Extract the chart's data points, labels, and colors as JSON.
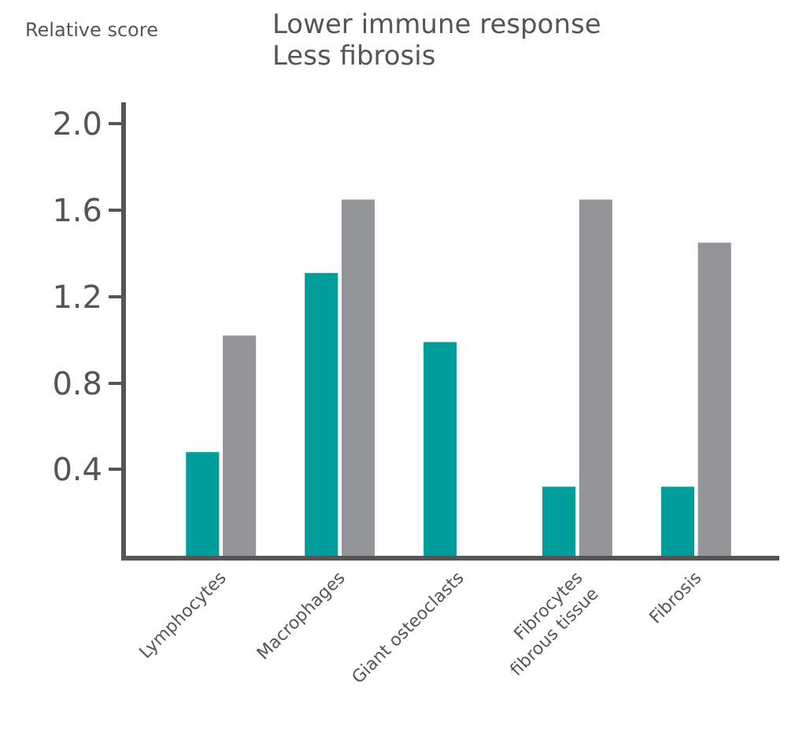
{
  "chart_data": {
    "type": "bar",
    "title": "Lower immune response",
    "subtitle": "Less fibrosis",
    "ylabel": "Relative score",
    "categories": [
      "Lymphocytes",
      "Macrophages",
      "Giant osteoclasts",
      "Fibrocytes\nfibrous tissue",
      "Fibrosis"
    ],
    "series": [
      {
        "color": "#009e9a",
        "values": [
          0.48,
          1.31,
          0.99,
          0.32,
          0.32
        ]
      },
      {
        "color": "#939598",
        "values": [
          1.02,
          1.65,
          null,
          1.65,
          1.45
        ]
      }
    ],
    "ylim": [
      0,
      2.1
    ],
    "yticks": [
      0.4,
      0.8,
      1.2,
      1.6,
      {
        "value": 2,
        "label": "2.0"
      }
    ],
    "grid": false
  }
}
